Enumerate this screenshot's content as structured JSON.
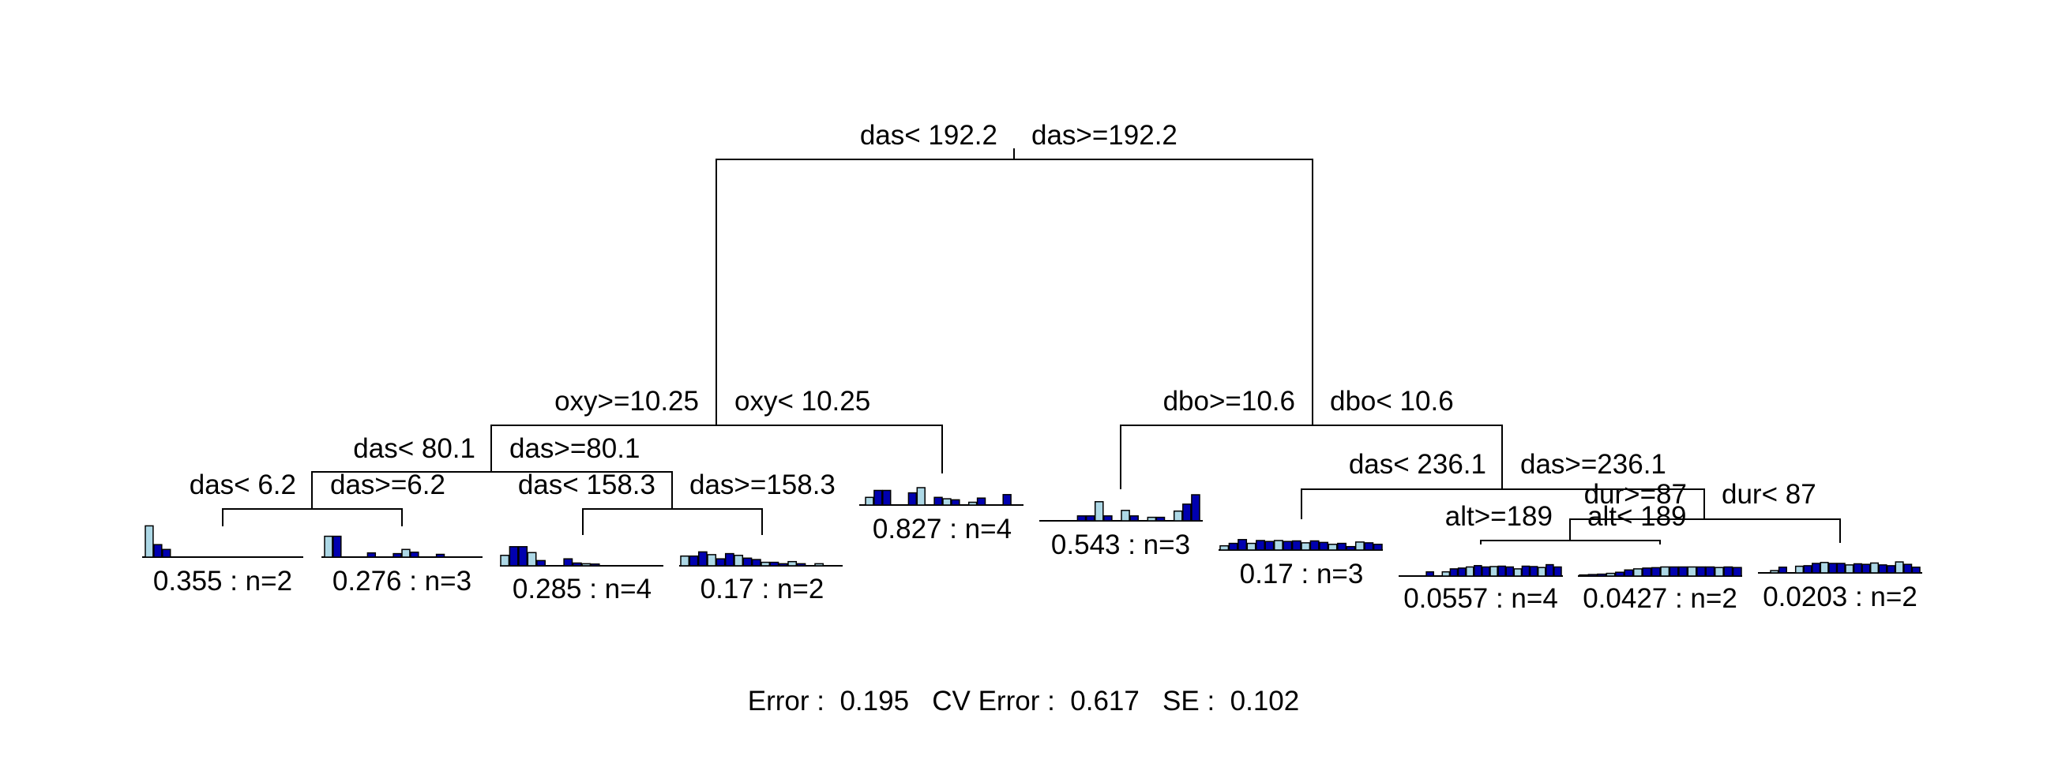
{
  "colors": {
    "bar_dark": "#0000B0",
    "bar_light": "#ADD8E6",
    "line": "#000000"
  },
  "splits": [
    {
      "id": "root",
      "left": "das< 192.2",
      "right": "das>=192.2"
    },
    {
      "id": "n2",
      "left": "oxy>=10.25",
      "right": "oxy< 10.25"
    },
    {
      "id": "n3",
      "left": "dbo>=10.6",
      "right": "dbo< 10.6"
    },
    {
      "id": "n4",
      "left": "das< 80.1",
      "right": "das>=80.1"
    },
    {
      "id": "n8",
      "left": "das< 6.2",
      "right": "das>=6.2"
    },
    {
      "id": "n9",
      "left": "das< 158.3",
      "right": "das>=158.3"
    },
    {
      "id": "n7",
      "left": "das< 236.1",
      "right": "das>=236.1"
    },
    {
      "id": "n15",
      "left": "dur>=87",
      "right": "dur< 87"
    },
    {
      "id": "n30",
      "left": "alt>=189",
      "right": "alt< 189"
    }
  ],
  "leaves": [
    {
      "id": "L1",
      "label": "0.355 : n=2",
      "bars": [
        0.9,
        0.36,
        0.22,
        0,
        0,
        0,
        0,
        0,
        0,
        0,
        0,
        0,
        0,
        0,
        0,
        0,
        0,
        0
      ]
    },
    {
      "id": "L2",
      "label": "0.276 : n=3",
      "bars": [
        0.6,
        0.6,
        0,
        0,
        0,
        0.12,
        0,
        0,
        0.1,
        0.22,
        0.14,
        0,
        0,
        0.08,
        0,
        0,
        0,
        0
      ]
    },
    {
      "id": "L3",
      "label": "0.285 : n=4",
      "bars": [
        0.3,
        0.55,
        0.55,
        0.38,
        0.15,
        0,
        0,
        0.2,
        0.08,
        0.06,
        0.05,
        0,
        0,
        0,
        0,
        0,
        0,
        0
      ]
    },
    {
      "id": "L4",
      "label": "0.17 : n=2",
      "bars": [
        0.28,
        0.28,
        0.4,
        0.32,
        0.2,
        0.35,
        0.3,
        0.22,
        0.18,
        0.1,
        0.1,
        0.06,
        0.12,
        0.06,
        0,
        0.06,
        0,
        0
      ]
    },
    {
      "id": "L5",
      "label": "0.827 : n=4",
      "bars": [
        0.22,
        0.42,
        0.42,
        0,
        0,
        0.35,
        0.5,
        0,
        0.22,
        0.18,
        0.15,
        0,
        0.08,
        0.2,
        0,
        0,
        0.3,
        0
      ]
    },
    {
      "id": "L6",
      "label": "0.543 : n=3",
      "bars": [
        0,
        0,
        0,
        0,
        0.14,
        0.14,
        0.55,
        0.14,
        0,
        0.3,
        0.14,
        0,
        0.1,
        0.1,
        0,
        0.28,
        0.48,
        0.75
      ]
    },
    {
      "id": "L7",
      "label": "0.17 : n=3",
      "bars": [
        0.22,
        0.35,
        0.55,
        0.35,
        0.5,
        0.45,
        0.5,
        0.45,
        0.48,
        0.38,
        0.48,
        0.4,
        0.3,
        0.35,
        0.18,
        0.42,
        0.38,
        0.3
      ]
    },
    {
      "id": "L8",
      "label": "0.0557 : n=4",
      "bars": [
        0,
        0.22,
        0,
        0.22,
        0.38,
        0.42,
        0.48,
        0.55,
        0.48,
        0.5,
        0.52,
        0.48,
        0.38,
        0.52,
        0.5,
        0.45,
        0.6,
        0.48
      ]
    },
    {
      "id": "L9",
      "label": "0.0427 : n=2",
      "bars": [
        0.06,
        0.08,
        0.1,
        0.14,
        0.2,
        0.32,
        0.38,
        0.42,
        0.44,
        0.48,
        0.48,
        0.48,
        0.48,
        0.48,
        0.48,
        0.45,
        0.48,
        0.45
      ]
    },
    {
      "id": "L10",
      "label": "0.0203 : n=2",
      "bars": [
        0.12,
        0.3,
        0,
        0.35,
        0.38,
        0.5,
        0.55,
        0.5,
        0.5,
        0.42,
        0.48,
        0.45,
        0.52,
        0.42,
        0.38,
        0.58,
        0.45,
        0.3
      ]
    }
  ],
  "footer": {
    "error_label": "Error :",
    "error_value": "0.195",
    "cv_label": "CV Error :",
    "cv_value": "0.617",
    "se_label": "SE :",
    "se_value": "0.102"
  }
}
